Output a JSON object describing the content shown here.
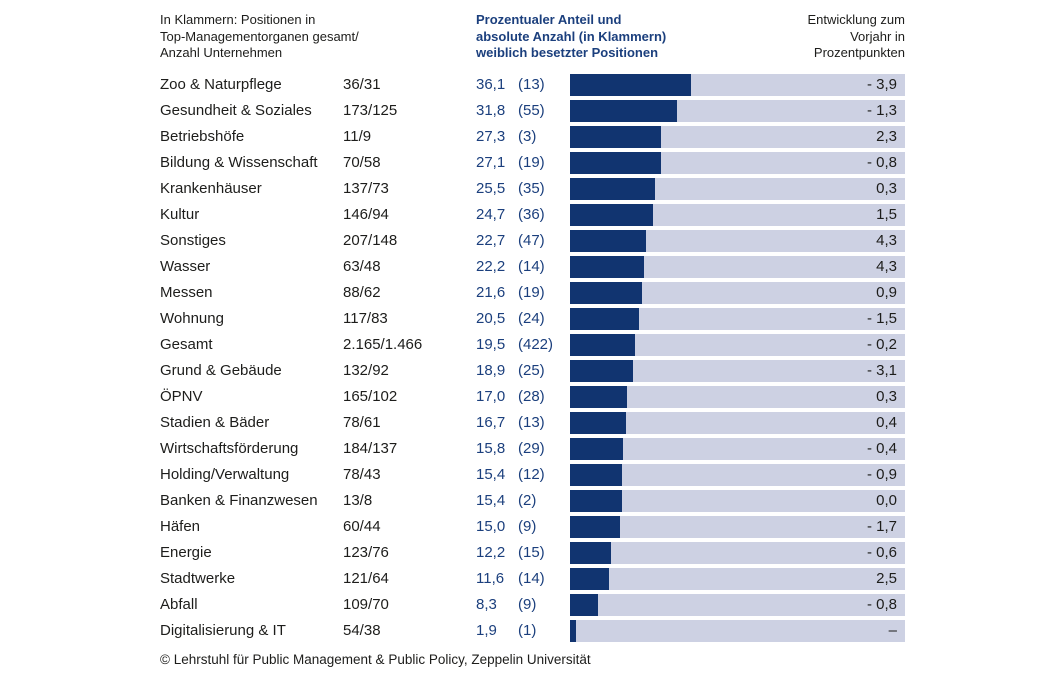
{
  "headers": {
    "left": "In Klammern: Positionen in\nTop-Managementorganen gesamt/\nAnzahl Unternehmen",
    "middle": "Prozentualer Anteil und\nabsolute Anzahl (in Klammern)\nweiblich besetzter Positionen",
    "right": "Entwicklung zum\nVorjahr in\nProzentpunkten"
  },
  "footer": {
    "copyright": "© Lehrstuhl für Public Management & Public Policy, Zeppelin Universität"
  },
  "colors": {
    "navy_bar": "#113470",
    "navy_text": "#1b3f7d",
    "track": "#cdd1e3",
    "dark_text": "#1d1d1b",
    "background": "#ffffff"
  },
  "chart_data": {
    "type": "bar",
    "orientation": "horizontal",
    "value_unit": "percent",
    "axis_max_percent": 100,
    "title": "Prozentualer Anteil und absolute Anzahl (in Klammern) weiblich besetzter Positionen",
    "note_left_column": "In Klammern: Positionen in Top-Managementorganen gesamt/ Anzahl Unternehmen",
    "right_column_label": "Entwicklung zum Vorjahr in Prozentpunkten",
    "rows": [
      {
        "sector": "Zoo & Naturpflege",
        "positions": "36/31",
        "percent": 36.1,
        "percent_label": "36,1",
        "female_count_label": "(13)",
        "change": -3.9,
        "change_label": "- 3,9"
      },
      {
        "sector": "Gesundheit & Soziales",
        "positions": "173/125",
        "percent": 31.8,
        "percent_label": "31,8",
        "female_count_label": "(55)",
        "change": -1.3,
        "change_label": "- 1,3"
      },
      {
        "sector": "Betriebshöfe",
        "positions": "11/9",
        "percent": 27.3,
        "percent_label": "27,3",
        "female_count_label": "(3)",
        "change": 2.3,
        "change_label": "2,3"
      },
      {
        "sector": "Bildung & Wissenschaft",
        "positions": "70/58",
        "percent": 27.1,
        "percent_label": "27,1",
        "female_count_label": "(19)",
        "change": -0.8,
        "change_label": "- 0,8"
      },
      {
        "sector": "Krankenhäuser",
        "positions": "137/73",
        "percent": 25.5,
        "percent_label": "25,5",
        "female_count_label": "(35)",
        "change": 0.3,
        "change_label": "0,3"
      },
      {
        "sector": "Kultur",
        "positions": "146/94",
        "percent": 24.7,
        "percent_label": "24,7",
        "female_count_label": "(36)",
        "change": 1.5,
        "change_label": "1,5"
      },
      {
        "sector": "Sonstiges",
        "positions": "207/148",
        "percent": 22.7,
        "percent_label": "22,7",
        "female_count_label": "(47)",
        "change": 4.3,
        "change_label": "4,3"
      },
      {
        "sector": "Wasser",
        "positions": "63/48",
        "percent": 22.2,
        "percent_label": "22,2",
        "female_count_label": "(14)",
        "change": 4.3,
        "change_label": "4,3"
      },
      {
        "sector": "Messen",
        "positions": "88/62",
        "percent": 21.6,
        "percent_label": "21,6",
        "female_count_label": "(19)",
        "change": 0.9,
        "change_label": "0,9"
      },
      {
        "sector": "Wohnung",
        "positions": "117/83",
        "percent": 20.5,
        "percent_label": "20,5",
        "female_count_label": "(24)",
        "change": -1.5,
        "change_label": "- 1,5"
      },
      {
        "sector": "Gesamt",
        "positions": "2.165/1.466",
        "percent": 19.5,
        "percent_label": "19,5",
        "female_count_label": "(422)",
        "change": -0.2,
        "change_label": "- 0,2"
      },
      {
        "sector": "Grund & Gebäude",
        "positions": "132/92",
        "percent": 18.9,
        "percent_label": "18,9",
        "female_count_label": "(25)",
        "change": -3.1,
        "change_label": "- 3,1"
      },
      {
        "sector": "ÖPNV",
        "positions": "165/102",
        "percent": 17.0,
        "percent_label": "17,0",
        "female_count_label": "(28)",
        "change": 0.3,
        "change_label": "0,3"
      },
      {
        "sector": "Stadien & Bäder",
        "positions": "78/61",
        "percent": 16.7,
        "percent_label": "16,7",
        "female_count_label": "(13)",
        "change": 0.4,
        "change_label": "0,4"
      },
      {
        "sector": "Wirtschaftsförderung",
        "positions": "184/137",
        "percent": 15.8,
        "percent_label": "15,8",
        "female_count_label": "(29)",
        "change": -0.4,
        "change_label": "- 0,4"
      },
      {
        "sector": "Holding/Verwaltung",
        "positions": "78/43",
        "percent": 15.4,
        "percent_label": "15,4",
        "female_count_label": "(12)",
        "change": -0.9,
        "change_label": "- 0,9"
      },
      {
        "sector": "Banken & Finanzwesen",
        "positions": "13/8",
        "percent": 15.4,
        "percent_label": "15,4",
        "female_count_label": "(2)",
        "change": 0.0,
        "change_label": "0,0"
      },
      {
        "sector": "Häfen",
        "positions": "60/44",
        "percent": 15.0,
        "percent_label": "15,0",
        "female_count_label": "(9)",
        "change": -1.7,
        "change_label": "- 1,7"
      },
      {
        "sector": "Energie",
        "positions": "123/76",
        "percent": 12.2,
        "percent_label": "12,2",
        "female_count_label": "(15)",
        "change": -0.6,
        "change_label": "- 0,6"
      },
      {
        "sector": "Stadtwerke",
        "positions": "121/64",
        "percent": 11.6,
        "percent_label": "11,6",
        "female_count_label": "(14)",
        "change": 2.5,
        "change_label": "2,5"
      },
      {
        "sector": "Abfall",
        "positions": "109/70",
        "percent": 8.3,
        "percent_label": "8,3",
        "female_count_label": "(9)",
        "change": -0.8,
        "change_label": "- 0,8"
      },
      {
        "sector": "Digitalisierung & IT",
        "positions": "54/38",
        "percent": 1.9,
        "percent_label": "1,9",
        "female_count_label": "(1)",
        "change": null,
        "change_label": "–"
      }
    ]
  }
}
